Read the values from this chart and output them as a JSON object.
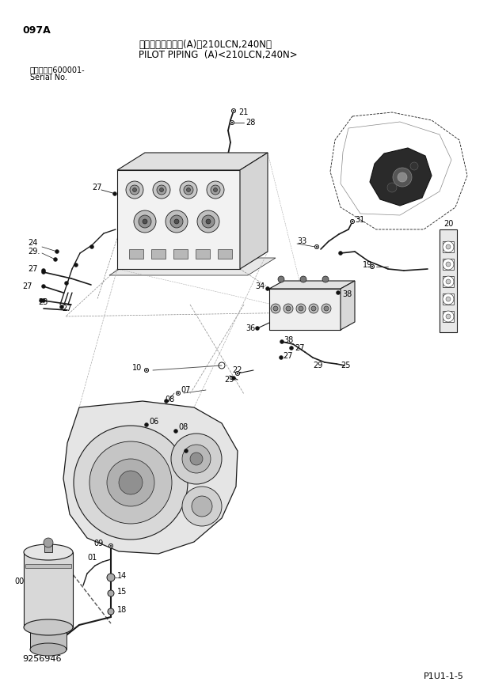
{
  "title_japanese": "パイロット配管　(A)＜210LCN,240N＞",
  "title_english": "PILOT PIPING  (A)<210LCN,240N>",
  "page_code": "097A",
  "serial_label_jp": "適用号機　600001-",
  "serial_label_en": "Serial No.",
  "doc_number": "9256946",
  "page_ref": "P1U1-1-5",
  "bg_color": "#ffffff",
  "line_color": "#1a1a1a",
  "text_color": "#000000",
  "fig_width": 6.2,
  "fig_height": 8.76,
  "dpi": 100
}
